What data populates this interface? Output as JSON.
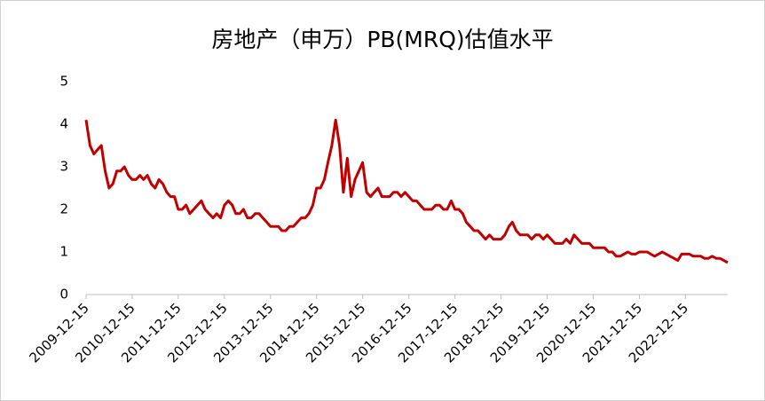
{
  "chart_data": {
    "type": "line",
    "title": "房地产（申万）PB(MRQ)估值水平",
    "x": [
      "2009-12-15",
      "2010-01-15",
      "2010-02-15",
      "2010-03-15",
      "2010-04-15",
      "2010-05-15",
      "2010-06-15",
      "2010-07-15",
      "2010-08-15",
      "2010-09-15",
      "2010-10-15",
      "2010-11-15",
      "2010-12-15",
      "2011-01-15",
      "2011-02-15",
      "2011-03-15",
      "2011-04-15",
      "2011-05-15",
      "2011-06-15",
      "2011-07-15",
      "2011-08-15",
      "2011-09-15",
      "2011-10-15",
      "2011-11-15",
      "2011-12-15",
      "2012-01-15",
      "2012-02-15",
      "2012-03-15",
      "2012-04-15",
      "2012-05-15",
      "2012-06-15",
      "2012-07-15",
      "2012-08-15",
      "2012-09-15",
      "2012-10-15",
      "2012-11-15",
      "2012-12-15",
      "2013-01-15",
      "2013-02-15",
      "2013-03-15",
      "2013-04-15",
      "2013-05-15",
      "2013-06-15",
      "2013-07-15",
      "2013-08-15",
      "2013-09-15",
      "2013-10-15",
      "2013-11-15",
      "2013-12-15",
      "2014-01-15",
      "2014-02-15",
      "2014-03-15",
      "2014-04-15",
      "2014-05-15",
      "2014-06-15",
      "2014-07-15",
      "2014-08-15",
      "2014-09-15",
      "2014-10-15",
      "2014-11-15",
      "2014-12-15",
      "2015-01-15",
      "2015-02-15",
      "2015-03-15",
      "2015-04-15",
      "2015-05-15",
      "2015-06-15",
      "2015-07-15",
      "2015-08-15",
      "2015-09-15",
      "2015-10-15",
      "2015-11-15",
      "2015-12-15",
      "2016-01-15",
      "2016-02-15",
      "2016-03-15",
      "2016-04-15",
      "2016-05-15",
      "2016-06-15",
      "2016-07-15",
      "2016-08-15",
      "2016-09-15",
      "2016-10-15",
      "2016-11-15",
      "2016-12-15",
      "2017-01-15",
      "2017-02-15",
      "2017-03-15",
      "2017-04-15",
      "2017-05-15",
      "2017-06-15",
      "2017-07-15",
      "2017-08-15",
      "2017-09-15",
      "2017-10-15",
      "2017-11-15",
      "2017-12-15",
      "2018-01-15",
      "2018-02-15",
      "2018-03-15",
      "2018-04-15",
      "2018-05-15",
      "2018-06-15",
      "2018-07-15",
      "2018-08-15",
      "2018-09-15",
      "2018-10-15",
      "2018-11-15",
      "2018-12-15",
      "2019-01-15",
      "2019-02-15",
      "2019-03-15",
      "2019-04-15",
      "2019-05-15",
      "2019-06-15",
      "2019-07-15",
      "2019-08-15",
      "2019-09-15",
      "2019-10-15",
      "2019-11-15",
      "2019-12-15",
      "2020-01-15",
      "2020-02-15",
      "2020-03-15",
      "2020-04-15",
      "2020-05-15",
      "2020-06-15",
      "2020-07-15",
      "2020-08-15",
      "2020-09-15",
      "2020-10-15",
      "2020-11-15",
      "2020-12-15",
      "2021-01-15",
      "2021-02-15",
      "2021-03-15",
      "2021-04-15",
      "2021-05-15",
      "2021-06-15",
      "2021-07-15",
      "2021-08-15",
      "2021-09-15",
      "2021-10-15",
      "2021-11-15",
      "2021-12-15",
      "2022-01-15",
      "2022-02-15",
      "2022-03-15",
      "2022-04-15",
      "2022-05-15",
      "2022-06-15",
      "2022-07-15",
      "2022-08-15",
      "2022-09-15",
      "2022-10-15",
      "2022-11-15",
      "2022-12-15",
      "2023-01-15",
      "2023-02-15",
      "2023-03-15",
      "2023-04-15",
      "2023-05-15",
      "2023-06-15",
      "2023-07-15",
      "2023-08-15",
      "2023-09-15",
      "2023-10-15",
      "2023-11-15"
    ],
    "series": [
      {
        "name": "PB(MRQ)",
        "color": "#c00000",
        "values": [
          4.1,
          3.5,
          3.3,
          3.4,
          3.5,
          2.9,
          2.5,
          2.6,
          2.9,
          2.9,
          3.0,
          2.8,
          2.7,
          2.7,
          2.8,
          2.7,
          2.8,
          2.6,
          2.5,
          2.7,
          2.6,
          2.4,
          2.3,
          2.3,
          2.0,
          2.0,
          2.1,
          1.9,
          2.0,
          2.1,
          2.2,
          2.0,
          1.9,
          1.8,
          1.9,
          1.8,
          2.1,
          2.2,
          2.1,
          1.9,
          1.9,
          2.0,
          1.8,
          1.8,
          1.9,
          1.9,
          1.8,
          1.7,
          1.6,
          1.6,
          1.6,
          1.5,
          1.5,
          1.6,
          1.6,
          1.7,
          1.8,
          1.8,
          1.9,
          2.1,
          2.5,
          2.5,
          2.7,
          3.1,
          3.5,
          4.1,
          3.5,
          2.4,
          3.2,
          2.3,
          2.7,
          2.9,
          3.1,
          2.4,
          2.3,
          2.4,
          2.5,
          2.3,
          2.3,
          2.3,
          2.4,
          2.4,
          2.3,
          2.4,
          2.3,
          2.2,
          2.2,
          2.1,
          2.0,
          2.0,
          2.0,
          2.1,
          2.1,
          2.0,
          2.0,
          2.2,
          2.0,
          2.0,
          1.9,
          1.7,
          1.6,
          1.5,
          1.5,
          1.4,
          1.3,
          1.4,
          1.3,
          1.3,
          1.3,
          1.4,
          1.6,
          1.7,
          1.5,
          1.4,
          1.4,
          1.4,
          1.3,
          1.4,
          1.4,
          1.3,
          1.4,
          1.3,
          1.2,
          1.2,
          1.2,
          1.3,
          1.2,
          1.4,
          1.3,
          1.2,
          1.2,
          1.2,
          1.1,
          1.1,
          1.1,
          1.1,
          1.0,
          1.0,
          0.9,
          0.9,
          0.95,
          1.0,
          0.95,
          0.95,
          1.0,
          1.0,
          1.0,
          0.95,
          0.9,
          0.95,
          1.0,
          0.95,
          0.9,
          0.85,
          0.8,
          0.95,
          0.95,
          0.95,
          0.9,
          0.9,
          0.9,
          0.85,
          0.85,
          0.9,
          0.85,
          0.85,
          0.8,
          0.75
        ]
      }
    ],
    "xlim": [
      "2009-12-15",
      "2023-11-15"
    ],
    "xticks": [
      "2009-12-15",
      "2010-12-15",
      "2011-12-15",
      "2012-12-15",
      "2013-12-15",
      "2014-12-15",
      "2015-12-15",
      "2016-12-15",
      "2017-12-15",
      "2018-12-15",
      "2019-12-15",
      "2020-12-15",
      "2021-12-15",
      "2022-12-15"
    ],
    "ylim": [
      0,
      5
    ],
    "yticks": [
      0,
      1,
      2,
      3,
      4,
      5
    ],
    "grid": false
  }
}
